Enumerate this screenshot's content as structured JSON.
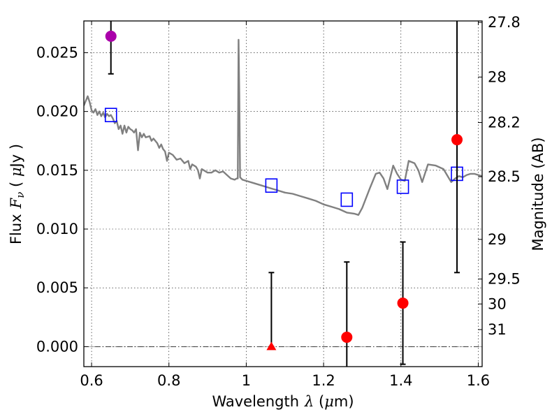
{
  "chart_data": {
    "type": "scatter",
    "xlabel": {
      "prefix": "Wavelength",
      "symbol": "λ",
      "unit_open": " (",
      "unit_mu": "μ",
      "unit_rest": "m)"
    },
    "ylabel": {
      "prefix": "Flux",
      "symbol": "F",
      "subscript": "ν",
      "unit_open": " ( ",
      "unit_mu": "μ",
      "unit_rest": "Jy )"
    },
    "y2label": "Magnitude (AB)",
    "xlim": [
      0.58,
      1.61
    ],
    "ylim": [
      -0.0017,
      0.0277
    ],
    "grid": true,
    "x_ticks": [
      {
        "value": 0.6,
        "label": "0.6"
      },
      {
        "value": 0.8,
        "label": "0.8"
      },
      {
        "value": 1.0,
        "label": "1"
      },
      {
        "value": 1.2,
        "label": "1.2"
      },
      {
        "value": 1.4,
        "label": "1.4"
      },
      {
        "value": 1.6,
        "label": "1.6"
      }
    ],
    "y_ticks": [
      {
        "value": 0.0,
        "label": "0.000"
      },
      {
        "value": 0.005,
        "label": "0.005"
      },
      {
        "value": 0.01,
        "label": "0.010"
      },
      {
        "value": 0.015,
        "label": "0.015"
      },
      {
        "value": 0.02,
        "label": "0.020"
      },
      {
        "value": 0.025,
        "label": "0.025"
      }
    ],
    "y2_ticks": [
      {
        "flux": 0.02757,
        "label": "27.8"
      },
      {
        "flux": 0.02293,
        "label": "28"
      },
      {
        "flux": 0.01906,
        "label": "28.2"
      },
      {
        "flux": 0.01445,
        "label": "28.5"
      },
      {
        "flux": 0.00912,
        "label": "29"
      },
      {
        "flux": 0.00575,
        "label": "29.5"
      },
      {
        "flux": 0.00363,
        "label": "30"
      },
      {
        "flux": 0.00145,
        "label": "31"
      }
    ],
    "zero_line": 0.0,
    "series": [
      {
        "kind": "spectrum",
        "color": "#808080",
        "points": [
          [
            0.58,
            0.0205
          ],
          [
            0.59,
            0.0213
          ],
          [
            0.595,
            0.0208
          ],
          [
            0.6,
            0.0201
          ],
          [
            0.605,
            0.0199
          ],
          [
            0.61,
            0.0202
          ],
          [
            0.615,
            0.0197
          ],
          [
            0.62,
            0.02
          ],
          [
            0.625,
            0.0196
          ],
          [
            0.63,
            0.0199
          ],
          [
            0.635,
            0.0195
          ],
          [
            0.64,
            0.0198
          ],
          [
            0.645,
            0.0196
          ],
          [
            0.65,
            0.0197
          ],
          [
            0.655,
            0.0194
          ],
          [
            0.66,
            0.019
          ],
          [
            0.665,
            0.0192
          ],
          [
            0.67,
            0.0185
          ],
          [
            0.675,
            0.0188
          ],
          [
            0.68,
            0.0181
          ],
          [
            0.685,
            0.0188
          ],
          [
            0.69,
            0.0182
          ],
          [
            0.695,
            0.0187
          ],
          [
            0.7,
            0.0185
          ],
          [
            0.705,
            0.0184
          ],
          [
            0.71,
            0.0182
          ],
          [
            0.715,
            0.0185
          ],
          [
            0.72,
            0.0167
          ],
          [
            0.725,
            0.0182
          ],
          [
            0.73,
            0.0178
          ],
          [
            0.735,
            0.0181
          ],
          [
            0.74,
            0.0178
          ],
          [
            0.75,
            0.0179
          ],
          [
            0.755,
            0.0175
          ],
          [
            0.76,
            0.0177
          ],
          [
            0.77,
            0.0173
          ],
          [
            0.775,
            0.0169
          ],
          [
            0.78,
            0.0172
          ],
          [
            0.785,
            0.0168
          ],
          [
            0.79,
            0.0166
          ],
          [
            0.795,
            0.0158
          ],
          [
            0.8,
            0.0165
          ],
          [
            0.81,
            0.0163
          ],
          [
            0.82,
            0.0159
          ],
          [
            0.83,
            0.016
          ],
          [
            0.84,
            0.0156
          ],
          [
            0.85,
            0.0158
          ],
          [
            0.855,
            0.0151
          ],
          [
            0.86,
            0.0155
          ],
          [
            0.87,
            0.0153
          ],
          [
            0.875,
            0.015
          ],
          [
            0.88,
            0.0143
          ],
          [
            0.885,
            0.0151
          ],
          [
            0.89,
            0.015
          ],
          [
            0.9,
            0.0148
          ],
          [
            0.91,
            0.0148
          ],
          [
            0.92,
            0.015
          ],
          [
            0.93,
            0.0148
          ],
          [
            0.94,
            0.0149
          ],
          [
            0.95,
            0.0146
          ],
          [
            0.96,
            0.0143
          ],
          [
            0.97,
            0.0142
          ],
          [
            0.975,
            0.0143
          ],
          [
            0.978,
            0.0143
          ],
          [
            0.98,
            0.0261
          ],
          [
            0.982,
            0.0215
          ],
          [
            0.984,
            0.0144
          ],
          [
            0.99,
            0.0142
          ],
          [
            1.0,
            0.0141
          ],
          [
            1.02,
            0.0139
          ],
          [
            1.04,
            0.0137
          ],
          [
            1.06,
            0.0135
          ],
          [
            1.08,
            0.0133
          ],
          [
            1.1,
            0.0131
          ],
          [
            1.12,
            0.013
          ],
          [
            1.14,
            0.0128
          ],
          [
            1.16,
            0.0126
          ],
          [
            1.18,
            0.0124
          ],
          [
            1.2,
            0.0121
          ],
          [
            1.22,
            0.0119
          ],
          [
            1.24,
            0.0117
          ],
          [
            1.26,
            0.0114
          ],
          [
            1.28,
            0.0113
          ],
          [
            1.29,
            0.0112
          ],
          [
            1.3,
            0.0118
          ],
          [
            1.32,
            0.0135
          ],
          [
            1.335,
            0.0147
          ],
          [
            1.345,
            0.0148
          ],
          [
            1.355,
            0.0143
          ],
          [
            1.365,
            0.0134
          ],
          [
            1.38,
            0.0154
          ],
          [
            1.39,
            0.0147
          ],
          [
            1.4,
            0.0142
          ],
          [
            1.41,
            0.0141
          ],
          [
            1.42,
            0.0158
          ],
          [
            1.435,
            0.0156
          ],
          [
            1.445,
            0.015
          ],
          [
            1.455,
            0.014
          ],
          [
            1.47,
            0.0155
          ],
          [
            1.49,
            0.0154
          ],
          [
            1.51,
            0.0151
          ],
          [
            1.53,
            0.014
          ],
          [
            1.54,
            0.0143
          ],
          [
            1.55,
            0.0145
          ],
          [
            1.56,
            0.0144
          ],
          [
            1.57,
            0.0146
          ],
          [
            1.58,
            0.0147
          ],
          [
            1.59,
            0.0147
          ],
          [
            1.6,
            0.0146
          ],
          [
            1.61,
            0.0145
          ]
        ]
      },
      {
        "kind": "model_squares",
        "color": "#0000ff",
        "points": [
          [
            0.65,
            0.0197
          ],
          [
            1.065,
            0.0137
          ],
          [
            1.26,
            0.0125
          ],
          [
            1.405,
            0.0136
          ],
          [
            1.545,
            0.0147
          ]
        ]
      },
      {
        "kind": "observed",
        "points": [
          {
            "x": 0.65,
            "y": 0.0264,
            "err_low": 0.0232,
            "err_high": 0.0277,
            "marker": "circle",
            "color": "#aa00aa"
          },
          {
            "x": 1.065,
            "y": 0.0,
            "err_low": 0.0,
            "err_high": 0.0063,
            "marker": "triangle",
            "color": "#ff0000"
          },
          {
            "x": 1.26,
            "y": 0.0008,
            "err_low": -0.0017,
            "err_high": 0.0072,
            "marker": "circle",
            "color": "#ff0000"
          },
          {
            "x": 1.405,
            "y": 0.0037,
            "err_low": -0.0015,
            "err_high": 0.0089,
            "marker": "circle",
            "color": "#ff0000"
          },
          {
            "x": 1.545,
            "y": 0.0176,
            "err_low": 0.0063,
            "err_high": 0.0277,
            "marker": "circle",
            "color": "#ff0000"
          }
        ]
      }
    ]
  }
}
